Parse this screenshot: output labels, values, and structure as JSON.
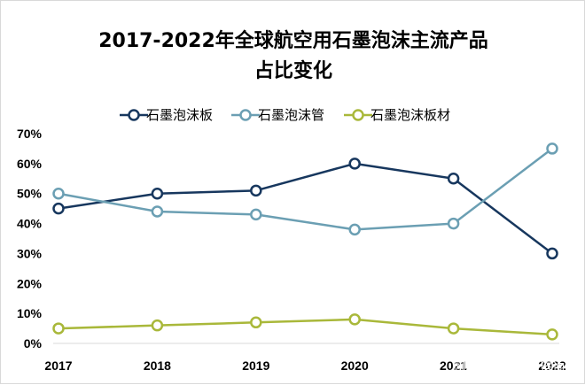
{
  "chart_data": {
    "type": "line",
    "title": "2017-2022年全球航空用石墨泡沫主流产品占比变化",
    "title_lines": [
      "2017-2022年全球航空用石墨泡沫主流产品",
      "占比变化"
    ],
    "xlabel": "",
    "ylabel": "",
    "categories": [
      "2017",
      "2018",
      "2019",
      "2020",
      "2021",
      "2022"
    ],
    "ylim": [
      0,
      70
    ],
    "yticks": [
      0,
      10,
      20,
      30,
      40,
      50,
      60,
      70
    ],
    "ytick_labels": [
      "0%",
      "10%",
      "20%",
      "30%",
      "40%",
      "50%",
      "60%",
      "70%"
    ],
    "grid": false,
    "legend_position": "top",
    "series": [
      {
        "name": "石墨泡沫板",
        "values": [
          45,
          50,
          51,
          60,
          55,
          30
        ],
        "color": "#17375e"
      },
      {
        "name": "石墨泡沫管",
        "values": [
          50,
          44,
          43,
          38,
          40,
          65
        ],
        "color": "#6b9fb3"
      },
      {
        "name": "石墨泡沫板材",
        "values": [
          5,
          6,
          7,
          8,
          5,
          3
        ],
        "color": "#a9b83a"
      }
    ]
  },
  "watermark": {
    "text": "网易号 | 贝哲斯咨询"
  }
}
